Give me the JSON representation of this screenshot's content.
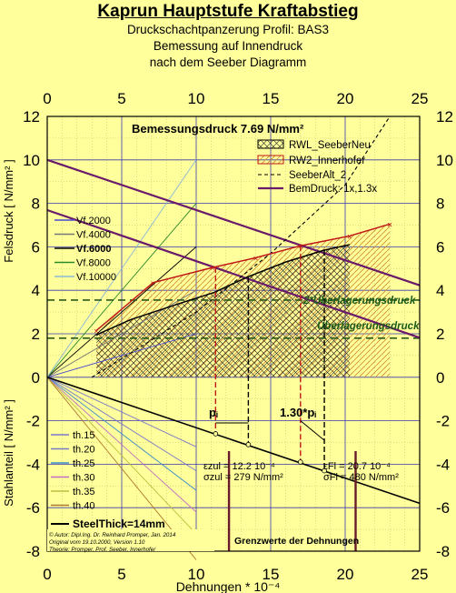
{
  "header": {
    "title": "Kaprun Hauptstufe Kraftabstieg",
    "line2": "Druckschachtpanzerung Profil: BAS3",
    "line3": "Bemessung auf Innendruck",
    "line4": "nach dem Seeber Diagramm"
  },
  "chart_data": {
    "type": "line",
    "x_ticks": [
      "0",
      "5",
      "10",
      "15",
      "20",
      "25"
    ],
    "y_ticks": [
      "12",
      "10",
      "8",
      "6",
      "4",
      "2",
      "0",
      "-2",
      "-4",
      "-6",
      "-8"
    ],
    "xlim": [
      0,
      25
    ],
    "ylim": [
      -8,
      12
    ],
    "xlabel": "Dehnungen * 10⁻⁴",
    "ylabel_upper": "Felsdruck [ N/mm² ]",
    "ylabel_lower": "Stahlanteil [ N/mm² ]",
    "bemessungsdruck": "Bemessungsdruck 7.69 N/mm²",
    "legend_top": [
      "RWL_SeeberNeu",
      "RW2_Innerhofer",
      "SeeberAlt_2",
      "BemDruck: 1x,1.3x"
    ],
    "vf_labels": [
      "Vf.2000",
      "Vf.4000",
      "Vf.6000",
      "Vf.8000",
      "Vf.10000"
    ],
    "th_labels": [
      "th.15",
      "th.20",
      "th.25",
      "th.30",
      "th.35",
      "th.40"
    ],
    "steelthick": "SteelThick=14mm",
    "annot_2x": "2*Überlagerungsdruck",
    "annot_1x": "Überlagerungsdruck",
    "annot_pi": "pᵢ",
    "annot_13pi": "1.30*pᵢ",
    "eps_zul": "εzul = 12.2 10⁻⁴",
    "sig_zul": "σzul = 279 N/mm²",
    "eps_fl": "εFl = 20.7 10⁻⁴",
    "sig_fl": "σFl = 480 N/mm²",
    "grenzwerte": "Grenzwerte der Dehnungen",
    "author1": "© Autor: Dipl.Ing. Dr. Reinhard Promper, Jan. 2014",
    "author2": "Original vom 19.10.2000, Version 1.10",
    "author3": "Theorie: Promper, Prof. Seeber, Innerhofer",
    "bemdruck_1x": {
      "x": [
        0,
        25
      ],
      "y": [
        7.69,
        1.82
      ]
    },
    "bemdruck_13x": {
      "x": [
        0,
        25
      ],
      "y": [
        10.0,
        4.23
      ]
    },
    "overburden_1x": {
      "y": 1.8
    },
    "overburden_2x": {
      "y": 3.55
    },
    "rwl_seeber_neu": {
      "x": [
        3.3,
        5.6,
        8.9,
        11.2,
        13.4,
        16.0,
        18.6,
        20.3
      ],
      "y": [
        1.95,
        2.65,
        3.4,
        3.9,
        4.6,
        5.3,
        5.85,
        6.1
      ]
    },
    "rw2_innerhofer": {
      "x": [
        3.3,
        7.1,
        11.1,
        14.0,
        17.0,
        20.3,
        23.0
      ],
      "y": [
        2.15,
        4.35,
        5.05,
        5.5,
        6.05,
        6.5,
        7.05
      ]
    },
    "seeber_alt_2": {
      "x": [
        3.0,
        10.0,
        15.0,
        20.0,
        23.0
      ],
      "y": [
        0.0,
        3.0,
        5.7,
        8.85,
        12.0
      ]
    },
    "steel_line": {
      "x": [
        0,
        25
      ],
      "y": [
        0,
        -5.8
      ]
    },
    "markers": {
      "pi_x": 11.3,
      "pi_x2": 13.5,
      "pi13_x": 17.0,
      "pi13_x2": 18.6,
      "grenz_x1": 12.2,
      "grenz_x2": 20.7
    }
  }
}
